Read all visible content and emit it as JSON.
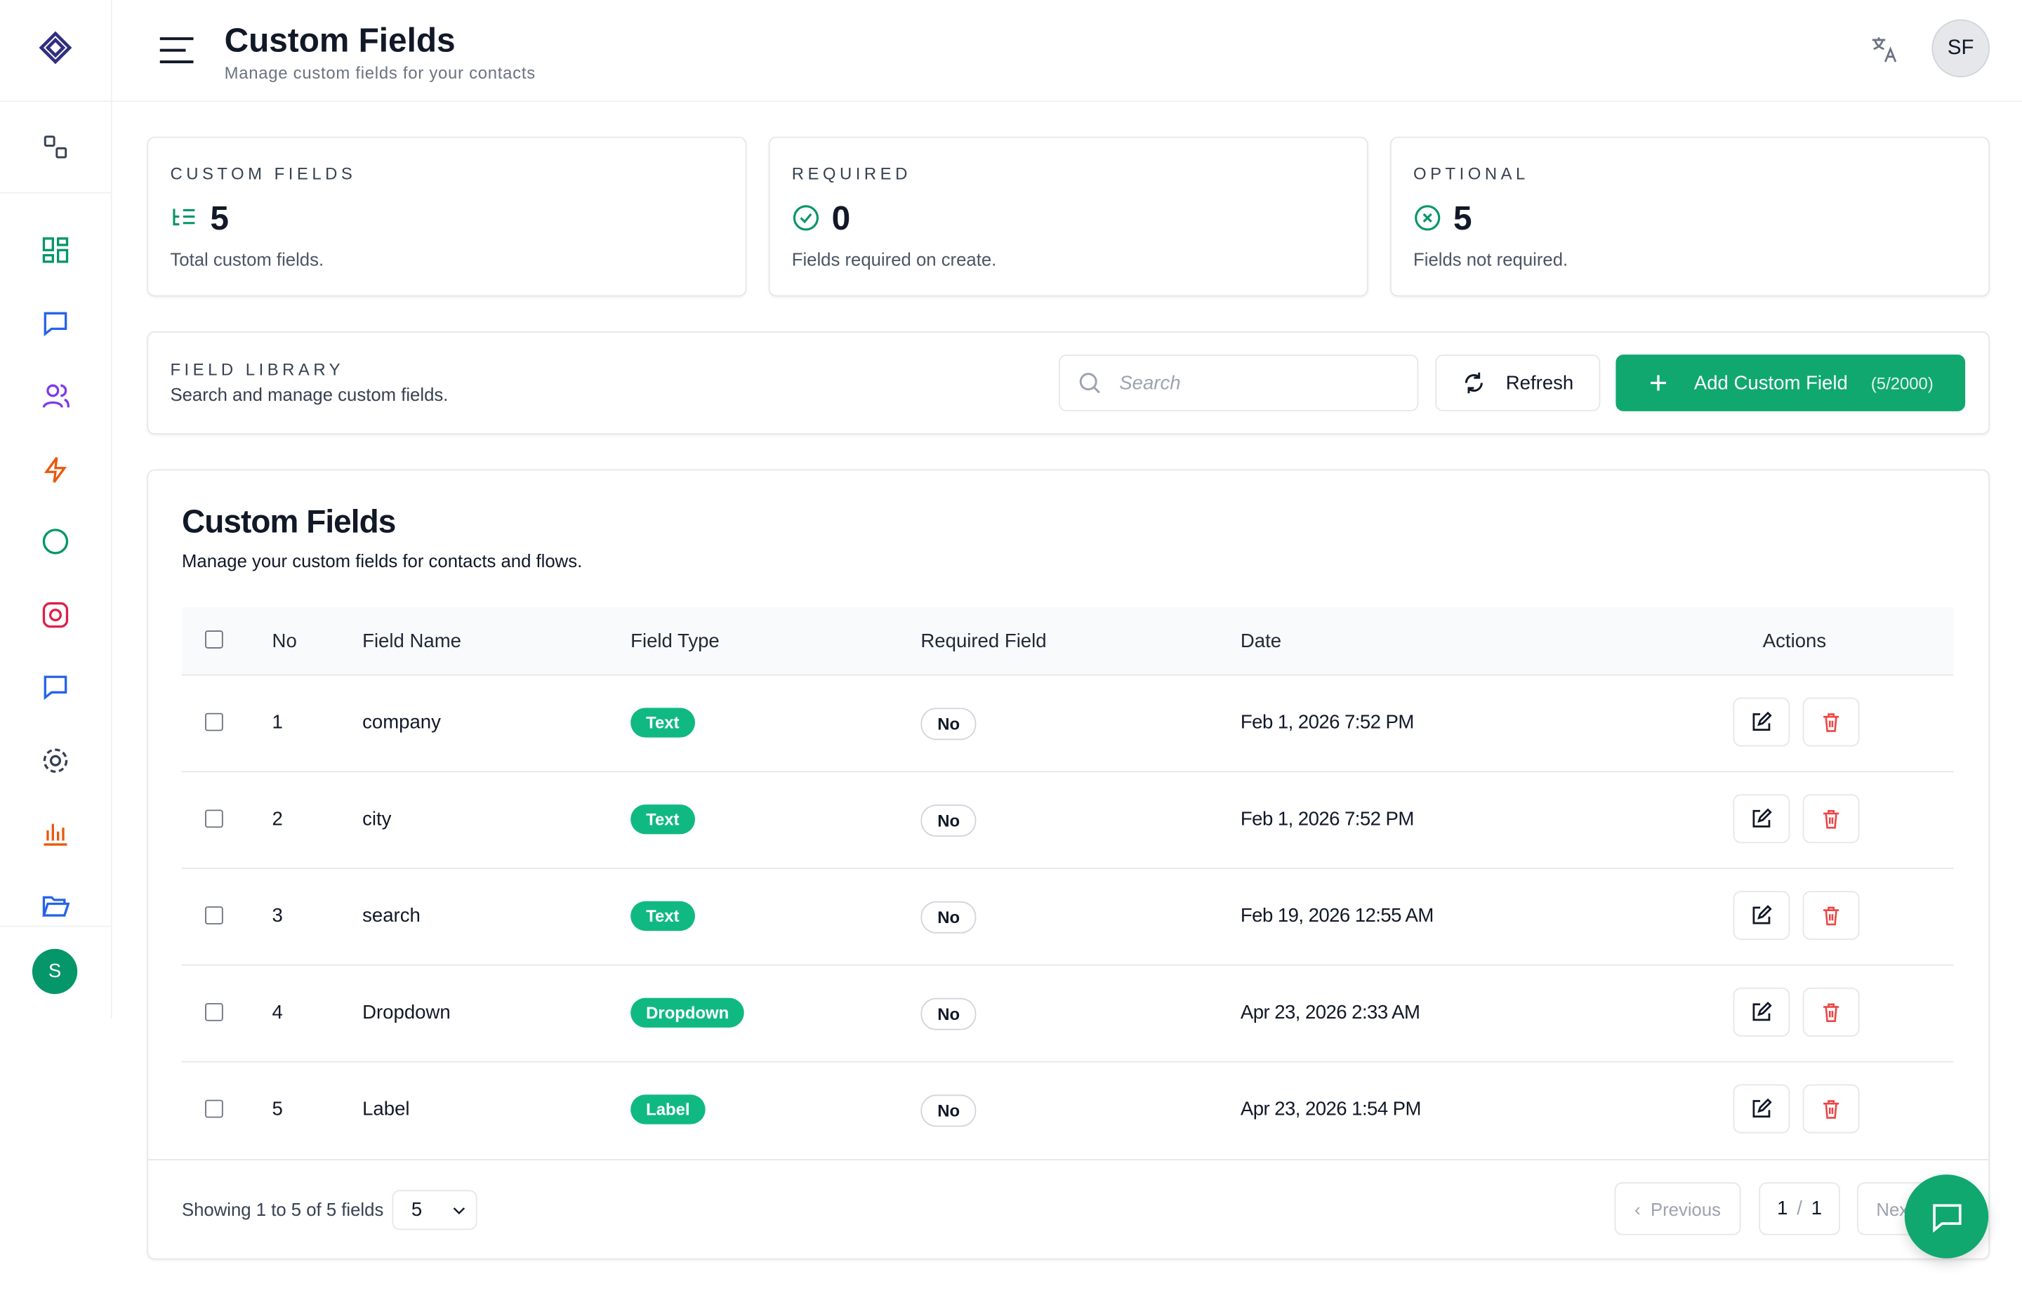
{
  "header": {
    "title": "Custom Fields",
    "subtitle": "Manage custom fields for your contacts",
    "avatar": "SF"
  },
  "sidebar": {
    "user_initial": "S"
  },
  "stats": [
    {
      "label": "CUSTOM FIELDS",
      "value": 5,
      "note": "Total custom fields."
    },
    {
      "label": "REQUIRED",
      "value": 0,
      "note": "Fields required on create."
    },
    {
      "label": "OPTIONAL",
      "value": 5,
      "note": "Fields not required."
    }
  ],
  "library": {
    "label": "FIELD LIBRARY",
    "description": "Search and manage custom fields.",
    "search_placeholder": "Search",
    "refresh": "Refresh",
    "add": "Add Custom Field",
    "add_count": "(5/2000)"
  },
  "table": {
    "title": "Custom Fields",
    "subtitle": "Manage your custom fields for contacts and flows.",
    "columns": [
      "No",
      "Field Name",
      "Field Type",
      "Required Field",
      "Date",
      "Actions"
    ],
    "rows": [
      [
        1,
        "company",
        "Text",
        "No",
        "Feb 1, 2026 7:52 PM"
      ],
      [
        2,
        "city",
        "Text",
        "No",
        "Feb 1, 2026 7:52 PM"
      ],
      [
        3,
        "search",
        "Text",
        "No",
        "Feb 19, 2026 12:55 AM"
      ],
      [
        4,
        "Dropdown",
        "Dropdown",
        "No",
        "Apr 23, 2026 2:33 AM"
      ],
      [
        5,
        "Label",
        "Label",
        "No",
        "Apr 23, 2026 1:54 PM"
      ]
    ]
  },
  "footer": {
    "showing": "Showing 1 to 5 of 5 fields",
    "page_size": 5,
    "previous": "Previous",
    "page": 1,
    "page_sep": "/",
    "pages": 1,
    "next": "Next"
  }
}
